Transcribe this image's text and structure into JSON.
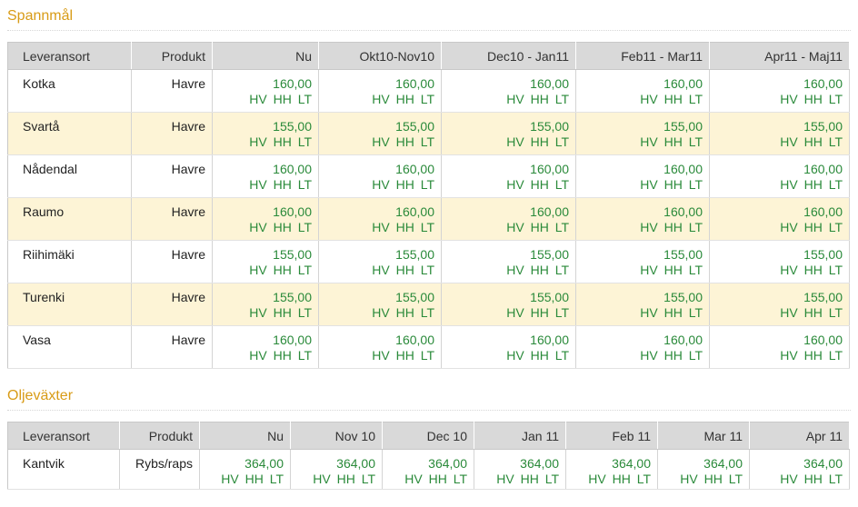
{
  "sections": [
    {
      "title": "Spannmål",
      "headers": [
        "Leveransort",
        "Produkt",
        "Nu",
        "Okt10-Nov10",
        "Dec10 - Jan11",
        "Feb11 - Mar11",
        "Apr11 - Maj11"
      ],
      "rows": [
        {
          "place": "Kotka",
          "product": "Havre",
          "prices": [
            "160,00",
            "160,00",
            "160,00",
            "160,00",
            "160,00"
          ]
        },
        {
          "place": "Svartå",
          "product": "Havre",
          "prices": [
            "155,00",
            "155,00",
            "155,00",
            "155,00",
            "155,00"
          ]
        },
        {
          "place": "Nådendal",
          "product": "Havre",
          "prices": [
            "160,00",
            "160,00",
            "160,00",
            "160,00",
            "160,00"
          ]
        },
        {
          "place": "Raumo",
          "product": "Havre",
          "prices": [
            "160,00",
            "160,00",
            "160,00",
            "160,00",
            "160,00"
          ]
        },
        {
          "place": "Riihimäki",
          "product": "Havre",
          "prices": [
            "155,00",
            "155,00",
            "155,00",
            "155,00",
            "155,00"
          ]
        },
        {
          "place": "Turenki",
          "product": "Havre",
          "prices": [
            "155,00",
            "155,00",
            "155,00",
            "155,00",
            "155,00"
          ]
        },
        {
          "place": "Vasa",
          "product": "Havre",
          "prices": [
            "160,00",
            "160,00",
            "160,00",
            "160,00",
            "160,00"
          ]
        }
      ]
    },
    {
      "title": "Oljeväxter",
      "headers": [
        "Leveransort",
        "Produkt",
        "Nu",
        "Nov 10",
        "Dec 10",
        "Jan 11",
        "Feb 11",
        "Mar 11",
        "Apr 11"
      ],
      "rows": [
        {
          "place": "Kantvik",
          "product": "Rybs/raps",
          "prices": [
            "364,00",
            "364,00",
            "364,00",
            "364,00",
            "364,00",
            "364,00",
            "364,00"
          ]
        }
      ]
    }
  ],
  "codes_label": "HV HH LT",
  "colors": {
    "title": "#d89b16",
    "price": "#2a8a3a",
    "header_bg": "#d9d9d9",
    "alt_row_bg": "#fdf4d6"
  }
}
